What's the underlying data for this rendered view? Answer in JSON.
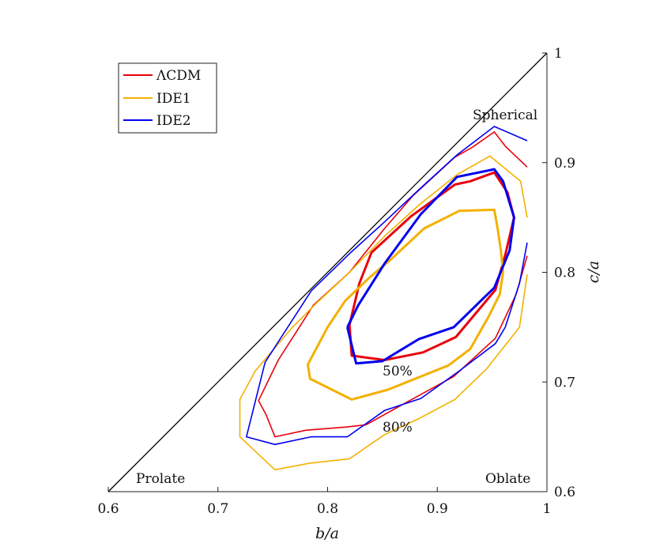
{
  "chart_data": {
    "type": "line",
    "title": "",
    "xlabel": "b/a",
    "ylabel": "c/a",
    "xlim": [
      0.6,
      1.0
    ],
    "ylim": [
      0.6,
      1.0
    ],
    "xticks": [
      0.6,
      0.7,
      0.8,
      0.9,
      1.0
    ],
    "xtick_labels": [
      "0.6",
      "0.7",
      "0.8",
      "0.9",
      "1"
    ],
    "yticks": [
      0.6,
      0.7,
      0.8,
      0.9,
      1.0
    ],
    "ytick_labels": [
      "0.6",
      "0.7",
      "0.8",
      "0.9",
      "1"
    ],
    "y_axis_side": "right",
    "grid": false,
    "legend_position": "top-left",
    "colors": {
      "lcdm": "#e8000b",
      "ide1": "#f4b000",
      "ide2": "#0000f0",
      "diagonal": "#000000"
    },
    "annotations": {
      "prolate": "Prolate",
      "oblate": "Oblate",
      "spherical": "Spherical",
      "contour_50": "50%",
      "contour_80": "80%"
    },
    "diagonal": [
      [
        0.6,
        0.6
      ],
      [
        1.0,
        1.0
      ]
    ],
    "series": [
      {
        "name": "ΛCDM",
        "key": "lcdm",
        "legend": true,
        "contours": [
          {
            "level": "50%",
            "width": 3,
            "points": [
              [
                0.82,
                0.752
              ],
              [
                0.829,
                0.79
              ],
              [
                0.84,
                0.818
              ],
              [
                0.876,
                0.851
              ],
              [
                0.916,
                0.88
              ],
              [
                0.93,
                0.883
              ],
              [
                0.952,
                0.891
              ],
              [
                0.964,
                0.873
              ],
              [
                0.97,
                0.85
              ],
              [
                0.962,
                0.816
              ],
              [
                0.953,
                0.784
              ],
              [
                0.917,
                0.741
              ],
              [
                0.887,
                0.727
              ],
              [
                0.852,
                0.72
              ],
              [
                0.822,
                0.724
              ],
              [
                0.82,
                0.752
              ]
            ]
          },
          {
            "level": "80%",
            "width": 1.6,
            "points": [
              [
                0.982,
                0.815
              ],
              [
                0.972,
                0.78
              ],
              [
                0.953,
                0.74
              ],
              [
                0.915,
                0.705
              ],
              [
                0.873,
                0.682
              ],
              [
                0.835,
                0.661
              ],
              [
                0.818,
                0.659
              ],
              [
                0.78,
                0.656
              ],
              [
                0.752,
                0.65
              ],
              [
                0.744,
                0.67
              ],
              [
                0.737,
                0.683
              ],
              [
                0.755,
                0.72
              ],
              [
                0.787,
                0.77
              ],
              [
                0.82,
                0.8
              ],
              [
                0.852,
                0.84
              ],
              [
                0.878,
                0.87
              ],
              [
                0.916,
                0.905
              ],
              [
                0.932,
                0.914
              ],
              [
                0.952,
                0.928
              ],
              [
                0.962,
                0.915
              ],
              [
                0.982,
                0.896
              ]
            ]
          }
        ]
      },
      {
        "name": "IDE1",
        "key": "ide1",
        "legend": true,
        "contours": [
          {
            "level": "50%",
            "width": 3,
            "points": [
              [
                0.96,
                0.8
              ],
              [
                0.958,
                0.82
              ],
              [
                0.955,
                0.84
              ],
              [
                0.952,
                0.857
              ],
              [
                0.92,
                0.856
              ],
              [
                0.888,
                0.84
              ],
              [
                0.858,
                0.812
              ],
              [
                0.838,
                0.795
              ],
              [
                0.816,
                0.774
              ],
              [
                0.8,
                0.75
              ],
              [
                0.782,
                0.716
              ],
              [
                0.784,
                0.703
              ],
              [
                0.822,
                0.684
              ],
              [
                0.855,
                0.693
              ],
              [
                0.91,
                0.715
              ],
              [
                0.93,
                0.73
              ],
              [
                0.947,
                0.76
              ],
              [
                0.957,
                0.78
              ],
              [
                0.96,
                0.8
              ]
            ]
          },
          {
            "level": "80%",
            "width": 1.6,
            "points": [
              [
                0.982,
                0.798
              ],
              [
                0.975,
                0.75
              ],
              [
                0.945,
                0.712
              ],
              [
                0.916,
                0.684
              ],
              [
                0.882,
                0.666
              ],
              [
                0.852,
                0.652
              ],
              [
                0.82,
                0.63
              ],
              [
                0.784,
                0.626
              ],
              [
                0.752,
                0.62
              ],
              [
                0.72,
                0.65
              ],
              [
                0.72,
                0.684
              ],
              [
                0.734,
                0.71
              ],
              [
                0.768,
                0.75
              ],
              [
                0.79,
                0.772
              ],
              [
                0.82,
                0.8
              ],
              [
                0.852,
                0.833
              ],
              [
                0.884,
                0.862
              ],
              [
                0.918,
                0.889
              ],
              [
                0.948,
                0.906
              ],
              [
                0.976,
                0.883
              ],
              [
                0.982,
                0.85
              ]
            ]
          }
        ]
      },
      {
        "name": "IDE2",
        "key": "ide2",
        "legend": true,
        "contours": [
          {
            "level": "50%",
            "width": 3,
            "points": [
              [
                0.818,
                0.75
              ],
              [
                0.828,
                0.77
              ],
              [
                0.852,
                0.808
              ],
              [
                0.885,
                0.853
              ],
              [
                0.918,
                0.887
              ],
              [
                0.952,
                0.894
              ],
              [
                0.96,
                0.883
              ],
              [
                0.97,
                0.85
              ],
              [
                0.966,
                0.82
              ],
              [
                0.952,
                0.786
              ],
              [
                0.915,
                0.75
              ],
              [
                0.883,
                0.739
              ],
              [
                0.85,
                0.719
              ],
              [
                0.826,
                0.717
              ],
              [
                0.818,
                0.75
              ]
            ]
          },
          {
            "level": "80%",
            "width": 1.6,
            "points": [
              [
                0.982,
                0.827
              ],
              [
                0.975,
                0.79
              ],
              [
                0.962,
                0.75
              ],
              [
                0.953,
                0.735
              ],
              [
                0.92,
                0.71
              ],
              [
                0.885,
                0.685
              ],
              [
                0.852,
                0.674
              ],
              [
                0.818,
                0.65
              ],
              [
                0.785,
                0.65
              ],
              [
                0.752,
                0.643
              ],
              [
                0.726,
                0.65
              ],
              [
                0.743,
                0.718
              ],
              [
                0.785,
                0.783
              ],
              [
                0.82,
                0.817
              ],
              [
                0.852,
                0.846
              ],
              [
                0.884,
                0.876
              ],
              [
                0.918,
                0.907
              ],
              [
                0.952,
                0.933
              ],
              [
                0.982,
                0.92
              ]
            ]
          }
        ]
      }
    ]
  }
}
